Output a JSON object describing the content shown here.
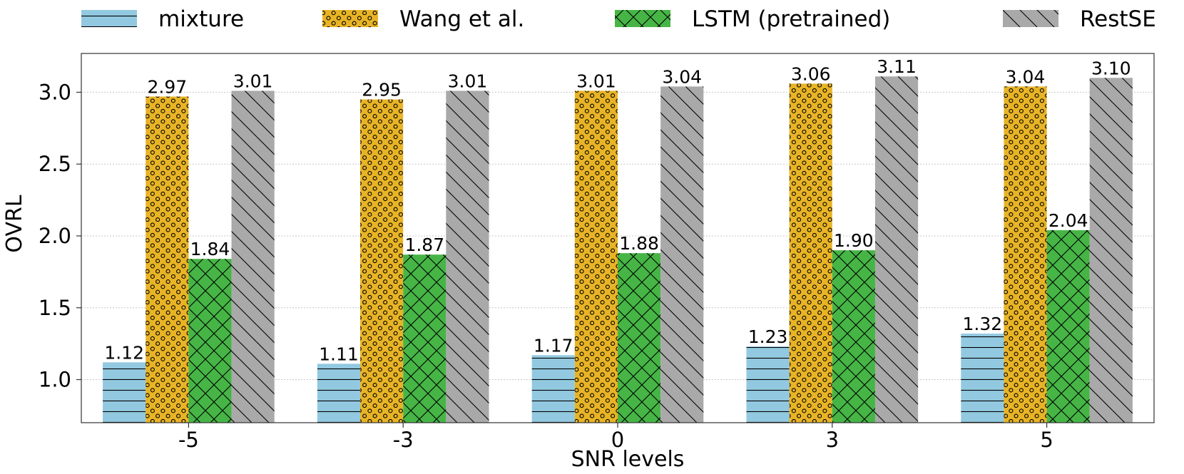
{
  "chart_data": {
    "type": "bar",
    "categories": [
      "-5",
      "-3",
      "0",
      "3",
      "5"
    ],
    "series": [
      {
        "name": "mixture",
        "values": [
          1.12,
          1.11,
          1.17,
          1.23,
          1.32
        ],
        "color": "#92c9e0",
        "pattern": "horizontal-lines"
      },
      {
        "name": "Wang et al.",
        "values": [
          2.97,
          2.95,
          3.01,
          3.06,
          3.04
        ],
        "color": "#e8b426",
        "pattern": "circles"
      },
      {
        "name": "LSTM (pretrained)",
        "values": [
          1.84,
          1.87,
          1.88,
          1.9,
          2.04
        ],
        "color": "#46b546",
        "pattern": "crosshatch"
      },
      {
        "name": "RestSE",
        "values": [
          3.01,
          3.01,
          3.04,
          3.11,
          3.1
        ],
        "color": "#a9a9a9",
        "pattern": "diagonal-lines"
      }
    ],
    "data_labels": [
      [
        "1.12",
        "1.11",
        "1.17",
        "1.23",
        "1.32"
      ],
      [
        "2.97",
        "2.95",
        "3.01",
        "3.06",
        "3.04"
      ],
      [
        "1.84",
        "1.87",
        "1.88",
        "1.90",
        "2.04"
      ],
      [
        "3.01",
        "3.01",
        "3.04",
        "3.11",
        "3.10"
      ]
    ],
    "xlabel": "SNR levels",
    "ylabel": "OVRL",
    "ylim": [
      0.7,
      3.27
    ],
    "yticks": [
      "1.0",
      "1.5",
      "2.0",
      "2.5",
      "3.0"
    ],
    "ytick_values": [
      1.0,
      1.5,
      2.0,
      2.5,
      3.0
    ],
    "grid": true,
    "legend_position": "top"
  }
}
